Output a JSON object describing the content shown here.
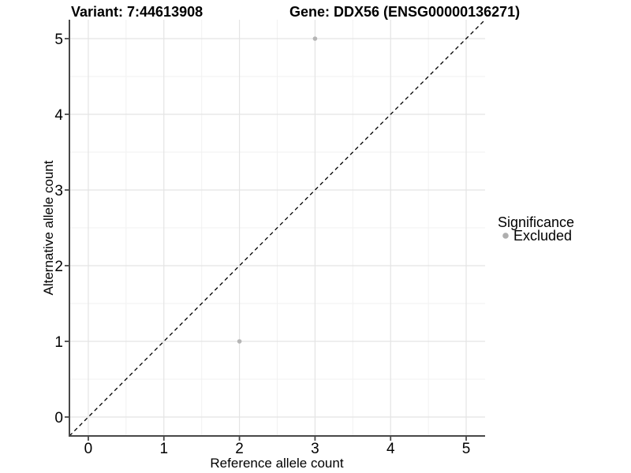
{
  "legend": {
    "title": "Significance",
    "items": [
      {
        "label": "Excluded",
        "color": "#aeaeae",
        "marker": "circle-icon"
      }
    ]
  },
  "chart_data": {
    "type": "scatter",
    "title_left": "Variant: 7:44613908",
    "title_right": "Gene: DDX56 (ENSG00000136271)",
    "xlabel": "Reference allele count",
    "ylabel": "Alternative allele count",
    "xlim": [
      -0.25,
      5.25
    ],
    "ylim": [
      -0.25,
      5.25
    ],
    "x_ticks": [
      0,
      1,
      2,
      3,
      4,
      5
    ],
    "y_ticks": [
      0,
      1,
      2,
      3,
      4,
      5
    ],
    "grid": {
      "major": true,
      "minor": true
    },
    "legend_position": "right",
    "legend_title": "Significance",
    "series": [
      {
        "name": "Excluded",
        "color": "#b5b5b5",
        "marker_radius": 2.8,
        "points": [
          [
            2,
            1
          ],
          [
            3,
            5
          ]
        ]
      }
    ],
    "reference_line": {
      "type": "identity y=x",
      "style": "dashed",
      "color": "#000000",
      "from": [
        -0.25,
        -0.25
      ],
      "to": [
        5.25,
        5.25
      ]
    }
  },
  "colors": {
    "background": "#ffffff",
    "grid_major": "#e4e4e4",
    "grid_minor": "#f1f1f1",
    "axis_line": "#484848",
    "tick_mark": "#484848",
    "text": "#000000"
  }
}
